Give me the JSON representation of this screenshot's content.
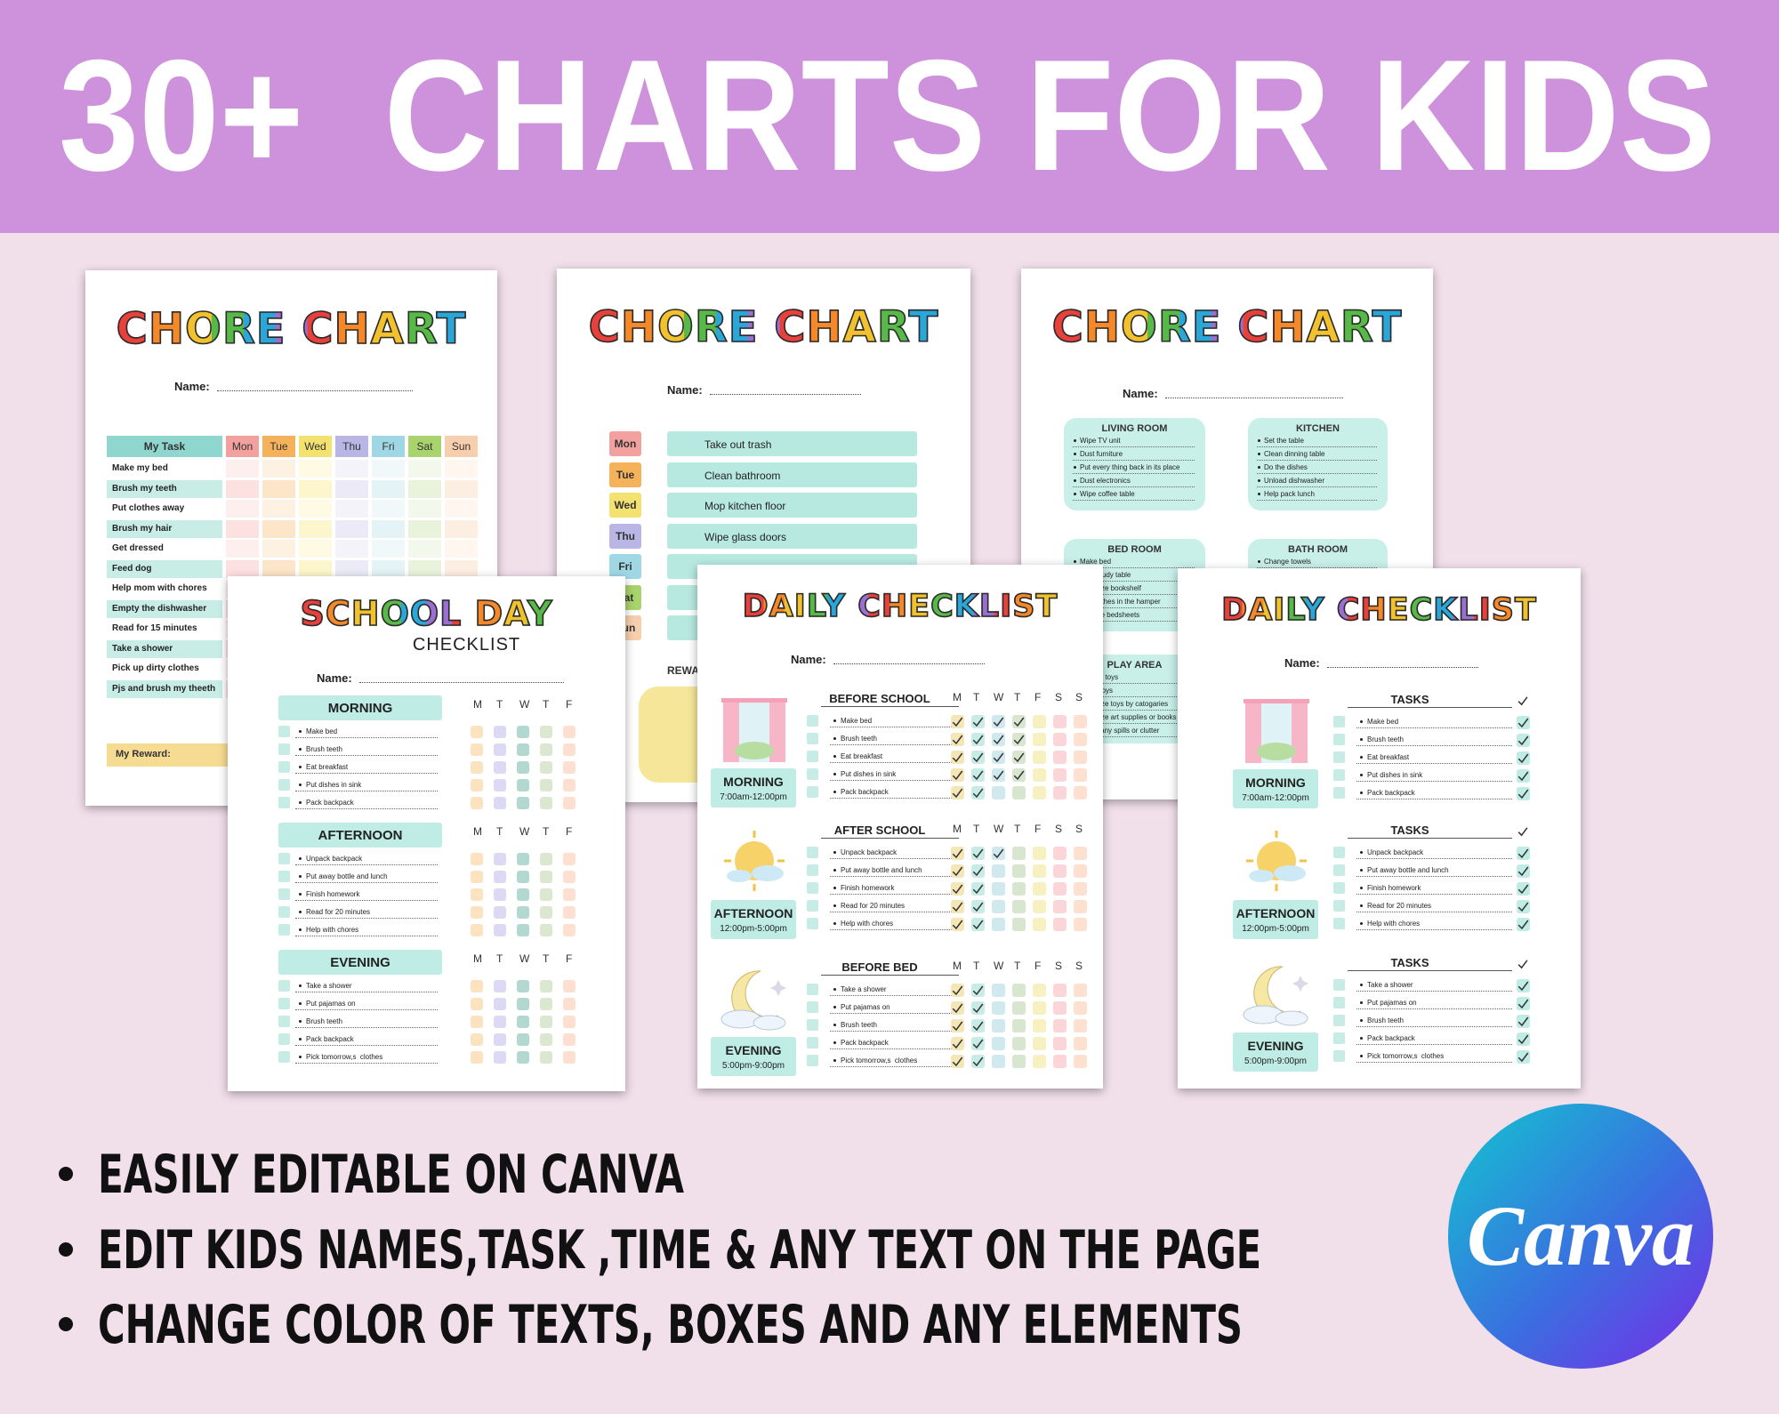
{
  "header": {
    "title": "30+  CHARTS FOR KIDS"
  },
  "cards": [
    {
      "title": "CHORE CHART",
      "name_label": "Name:",
      "columns": [
        "My Task",
        "Mon",
        "Tue",
        "Wed",
        "Thu",
        "Fri",
        "Sat",
        "Sun"
      ],
      "tasks": [
        "Make my bed",
        "Brush my teeth",
        "Put clothes away",
        "Brush my hair",
        "Get dressed",
        "Feed dog",
        "Help mom with chores",
        "Empty the dishwasher",
        "Read for 15 minutes",
        "Take a shower",
        "Pick up dirty clothes",
        "Pjs and brush my theeth"
      ],
      "reward": "My Reward:"
    },
    {
      "title": "CHORE CHART",
      "name_label": "Name:",
      "days": [
        "Mon",
        "Tue",
        "Wed",
        "Thu",
        "Fri",
        "Sat",
        "Sun"
      ],
      "tasks": [
        "Take out trash",
        "Clean bathroom",
        "Mop kitchen floor",
        "Wipe glass doors"
      ],
      "reward": "REWARD"
    },
    {
      "title": "CHORE CHART",
      "name_label": "Name:",
      "rooms": [
        {
          "name": "LIVING ROOM",
          "items": [
            "Wipe TV unit",
            "Dust furniture",
            "Put every thing back in its place",
            "Dust electronics",
            "Wipe coffee table"
          ]
        },
        {
          "name": "KITCHEN",
          "items": [
            "Set the table",
            "Clean dinning table",
            "Do the dishes",
            "Unload dishwasher",
            "Help pack lunch"
          ]
        },
        {
          "name": "BED ROOM",
          "items": [
            "Make bed",
            "Dust study table",
            "Organize bookshelf",
            "Put clothes in the hamper",
            "Change bedsheets"
          ]
        },
        {
          "name": "BATH ROOM",
          "items": [
            "Change towels"
          ]
        },
        {
          "name": "PLAY AREA",
          "items": [
            "Pick up toys",
            "Wash toys",
            "Organize toys by catogaries",
            "Organize art supplies or books",
            "Clean any spills or clutter"
          ]
        }
      ]
    },
    {
      "title": "SCHOOL DAY",
      "subtitle": "CHECKLIST",
      "name_label": "Name:",
      "sections": [
        {
          "name": "MORNING",
          "days": [
            "M",
            "T",
            "W",
            "T",
            "F"
          ],
          "tasks": [
            "Make bed",
            "Brush teeth",
            "Eat breakfast",
            "Put dishes in sink",
            "Pack backpack"
          ]
        },
        {
          "name": "AFTERNOON",
          "days": [
            "M",
            "T",
            "W",
            "T",
            "F"
          ],
          "tasks": [
            "Unpack backpack",
            "Put away bottle and lunch",
            "Finish homework",
            "Read for 20 minutes",
            "Help with chores"
          ]
        },
        {
          "name": "EVENING",
          "days": [
            "M",
            "T",
            "W",
            "T",
            "F"
          ],
          "tasks": [
            "Take a shower",
            "Put pajamas on",
            "Brush teeth",
            "Pack backpack",
            "Pick tomorrow,s  clothes"
          ]
        }
      ]
    },
    {
      "title": "DAILY CHECKLIST",
      "name_label": "Name:",
      "sections": [
        {
          "heading": "BEFORE SCHOOL",
          "label": "MORNING",
          "time": "7:00am-12:00pm",
          "days": [
            "M",
            "T",
            "W",
            "T",
            "F",
            "S",
            "S"
          ],
          "tasks": [
            "Make bed",
            "Brush teeth",
            "Eat breakfast",
            "Put dishes in sink",
            "Pack backpack"
          ]
        },
        {
          "heading": "AFTER SCHOOL",
          "label": "AFTERNOON",
          "time": "12:00pm-5:00pm",
          "days": [
            "M",
            "T",
            "W",
            "T",
            "F",
            "S",
            "S"
          ],
          "tasks": [
            "Unpack backpack",
            "Put away bottle and lunch",
            "Finish homework",
            "Read for 20 minutes",
            "Help with chores"
          ]
        },
        {
          "heading": "BEFORE BED",
          "label": "EVENING",
          "time": "5:00pm-9:00pm",
          "days": [
            "M",
            "T",
            "W",
            "T",
            "F",
            "S",
            "S"
          ],
          "tasks": [
            "Take a shower",
            "Put pajamas on",
            "Brush teeth",
            "Pack backpack",
            "Pick tomorrow,s  clothes"
          ]
        }
      ]
    },
    {
      "title": "DAILY CHECKLIST",
      "name_label": "Name:",
      "sections": [
        {
          "heading": "TASKS",
          "label": "MORNING",
          "time": "7:00am-12:00pm",
          "tasks": [
            "Make bed",
            "Brush teeth",
            "Eat breakfast",
            "Put dishes in sink",
            "Pack backpack"
          ]
        },
        {
          "heading": "TASKS",
          "label": "AFTERNOON",
          "time": "12:00pm-5:00pm",
          "tasks": [
            "Unpack backpack",
            "Put away bottle and lunch",
            "Finish homework",
            "Read for 20 minutes",
            "Help with chores"
          ]
        },
        {
          "heading": "TASKS",
          "label": "EVENING",
          "time": "5:00pm-9:00pm",
          "tasks": [
            "Take a shower",
            "Put pajamas on",
            "Brush teeth",
            "Pack backpack",
            "Pick tomorrow,s  clothes"
          ]
        }
      ]
    }
  ],
  "features": [
    "EASILY EDITABLE ON CANVA",
    "EDIT KIDS NAMES,TASK ,TIME & ANY TEXT ON THE PAGE",
    "CHANGE COLOR OF TEXTS, BOXES AND ANY ELEMENTS"
  ],
  "logo": "Canva"
}
